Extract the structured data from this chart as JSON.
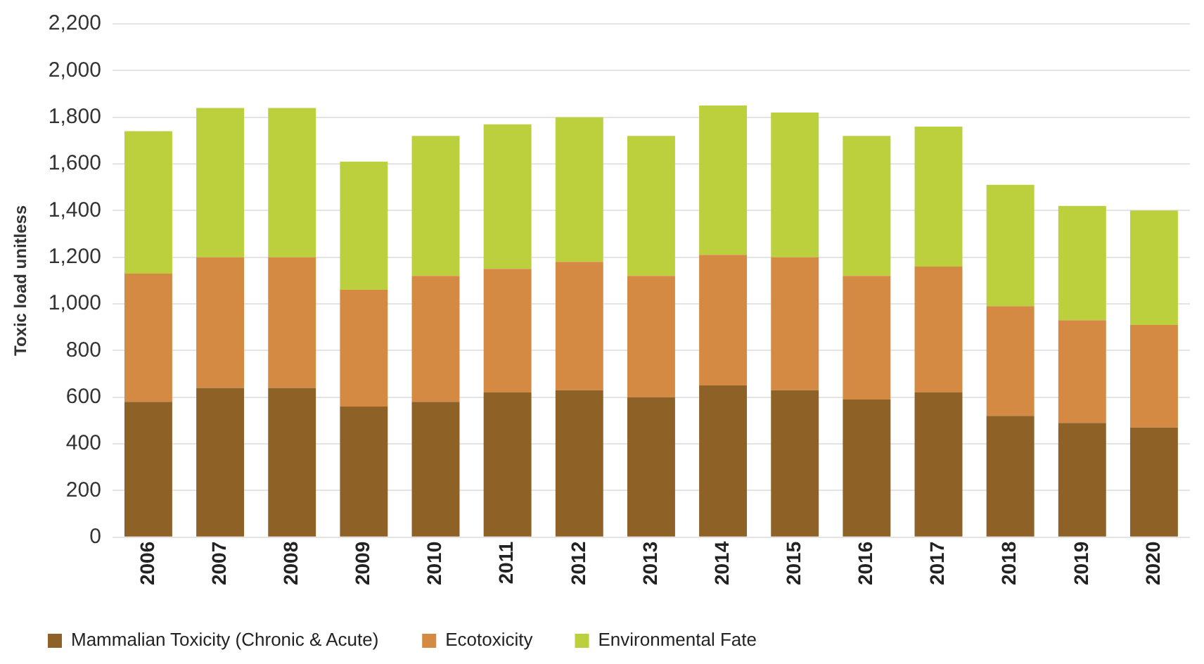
{
  "chart_data": {
    "type": "bar",
    "stacked": true,
    "ylabel": "Toxic load unitless",
    "categories": [
      "2006",
      "2007",
      "2008",
      "2009",
      "2010",
      "2011",
      "2012",
      "2013",
      "2014",
      "2015",
      "2016",
      "2017",
      "2018",
      "2019",
      "2020"
    ],
    "series": [
      {
        "name": "Mammalian Toxicity (Chronic & Acute)",
        "color": "#8e6127",
        "values": [
          580,
          640,
          640,
          560,
          580,
          620,
          630,
          600,
          650,
          630,
          590,
          620,
          520,
          490,
          470
        ]
      },
      {
        "name": "Ecotoxicity",
        "color": "#d48a42",
        "values": [
          550,
          560,
          560,
          500,
          540,
          530,
          550,
          520,
          560,
          570,
          530,
          540,
          470,
          440,
          440
        ]
      },
      {
        "name": "Environmental Fate",
        "color": "#bccf3c",
        "values": [
          610,
          640,
          640,
          550,
          600,
          620,
          620,
          600,
          640,
          620,
          600,
          600,
          520,
          490,
          490
        ]
      }
    ],
    "ylim": [
      0,
      2200
    ],
    "yticks": [
      0,
      200,
      400,
      600,
      800,
      {
        "value": 1000,
        "label": "1,000"
      },
      {
        "value": 1200,
        "label": "1,200"
      },
      {
        "value": 1400,
        "label": "1,400"
      },
      {
        "value": 1600,
        "label": "1,600"
      },
      {
        "value": 1800,
        "label": "1,800"
      },
      {
        "value": 2000,
        "label": "2,000"
      },
      {
        "value": 2200,
        "label": "2,200"
      }
    ],
    "grid": "y",
    "legend": "bottom left"
  }
}
